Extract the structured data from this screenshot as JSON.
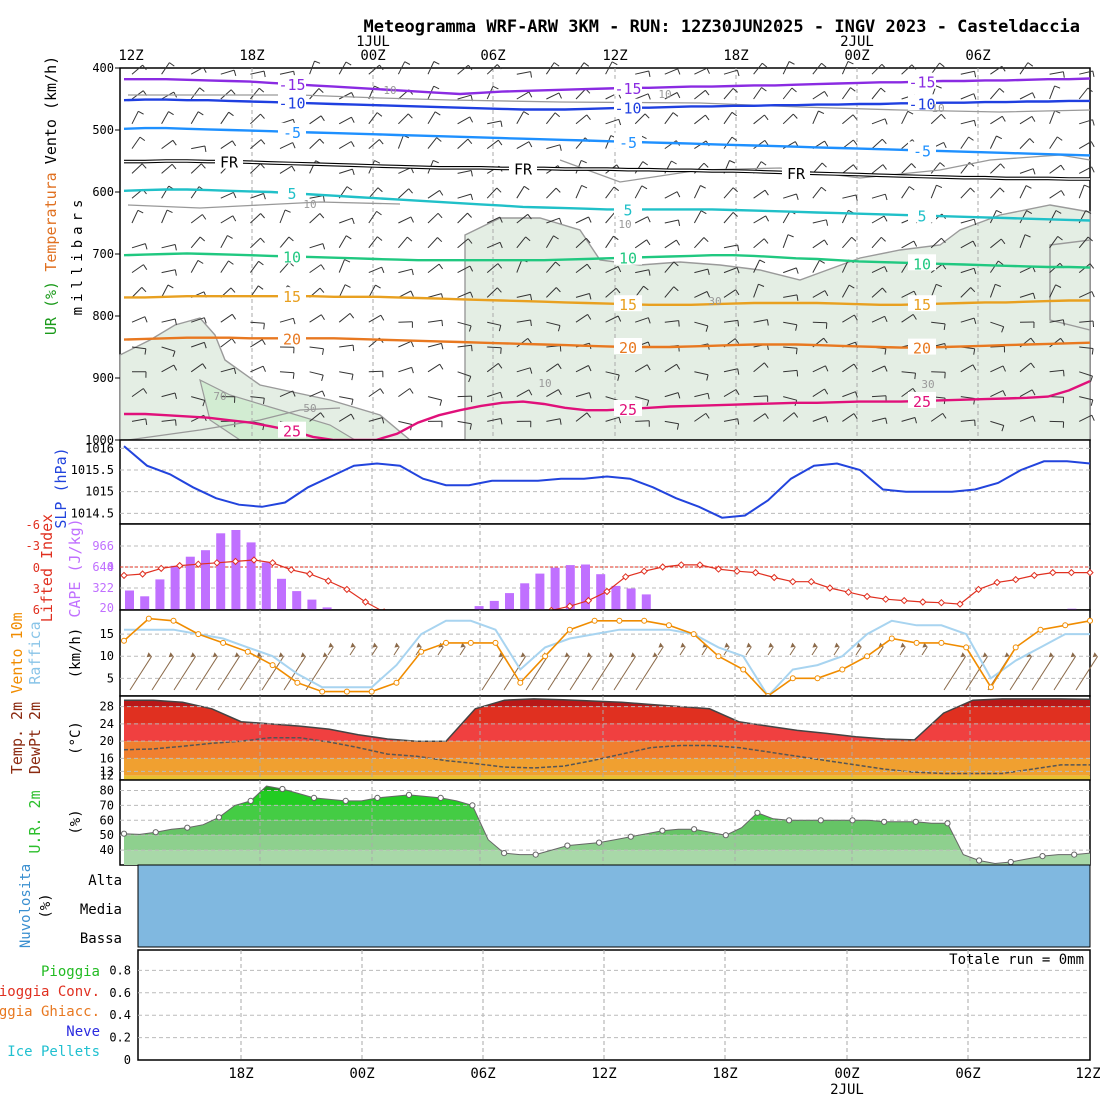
{
  "title": "Meteogramma WRF-ARW 3KM - RUN: 12Z30JUN2025 - INGV 2023 - Casteldaccia",
  "colors": {
    "purple": "#8a2be2",
    "blue": "#1f3fe0",
    "sky": "#1e90ff",
    "cyan": "#20c0c8",
    "green": "#20c880",
    "orange": "#e8a020",
    "darkorange": "#e87820",
    "magenta": "#e0107a",
    "gray": "#999999",
    "slp": "#2244dd",
    "cape": "#c070ff",
    "li": "#e03020",
    "wind10": "#f08c00",
    "gust": "#a8d4f0",
    "rh_dark": "#22cc22",
    "rh_light": "#a8d8a8",
    "cloud": "#80b8e0"
  },
  "top_axis": {
    "labels": [
      "12Z",
      "18Z",
      "00Z",
      "06Z",
      "12Z",
      "18Z",
      "00Z",
      "06Z"
    ],
    "date_labels": [
      "1JUL",
      "2JUL"
    ]
  },
  "bottom_axis": {
    "labels": [
      "18Z",
      "00Z",
      "06Z",
      "12Z",
      "18Z",
      "00Z",
      "06Z",
      "12Z"
    ],
    "date_label": "2JUL"
  },
  "panel_labels": {
    "upper": {
      "wind": "Vento (km/h)",
      "temp": "Temperatura",
      "rh": "UR (%)",
      "unit": "millibars"
    },
    "slp": "SLP (hPa)",
    "li": "Lifted Index",
    "cape": "CAPE (J/kg)",
    "wind10_a": "Vento 10m",
    "wind10_b": "Raffica",
    "wind_unit": "(km/h)",
    "temp_a": "Temp. 2m",
    "temp_b": "DewPt 2m",
    "temp_unit": "(°C)",
    "rh2": "U.R. 2m",
    "rh_unit": "(%)",
    "cloud": "Nuvolosita",
    "cloud_unit": "(%)",
    "cloud_levels": [
      "Alta",
      "Media",
      "Bassa"
    ],
    "precip": [
      "Pioggia",
      "Pioggia Conv.",
      "Pioggia Ghiacc.",
      "Neve",
      "Ice Pellets"
    ],
    "precip_total": "Totale run = 0mm"
  },
  "chart_data": [
    {
      "type": "line",
      "name": "upper-air",
      "ylim": [
        1000,
        400
      ],
      "y_ticks": [
        400,
        500,
        600,
        700,
        800,
        900,
        1000
      ],
      "contour_labels": [
        "-15",
        "-10",
        "-5",
        "FR",
        "5",
        "10",
        "15",
        "20",
        "25",
        "10",
        "30",
        "50",
        "70"
      ],
      "isotherms": [
        {
          "label": "-15",
          "color": "purple",
          "p": [
            418,
            418,
            418,
            419,
            420,
            421,
            422,
            424,
            426,
            428,
            430,
            432,
            434,
            436,
            438,
            440,
            442,
            440,
            438,
            437,
            436,
            435,
            434,
            433,
            432,
            432,
            431,
            430,
            430,
            429,
            428,
            428,
            427,
            426,
            425,
            424,
            423,
            423,
            422,
            421,
            421,
            420,
            420,
            419,
            418,
            418,
            417
          ]
        },
        {
          "label": "-10",
          "color": "blue",
          "p": [
            452,
            451,
            451,
            452,
            452,
            453,
            454,
            455,
            456,
            457,
            458,
            459,
            460,
            461,
            462,
            463,
            464,
            465,
            466,
            467,
            467,
            467,
            466,
            465,
            464,
            464,
            463,
            462,
            462,
            461,
            461,
            460,
            460,
            459,
            459,
            458,
            458,
            457,
            457,
            456,
            456,
            455,
            455,
            454,
            454,
            453,
            453
          ]
        },
        {
          "label": "-5",
          "color": "sky",
          "p": [
            498,
            497,
            497,
            498,
            499,
            500,
            501,
            502,
            503,
            504,
            505,
            506,
            507,
            508,
            509,
            510,
            511,
            512,
            513,
            514,
            515,
            516,
            517,
            518,
            519,
            520,
            521,
            522,
            523,
            524,
            525,
            526,
            527,
            528,
            529,
            530,
            531,
            532,
            533,
            534,
            535,
            536,
            537,
            538,
            539,
            540,
            541
          ]
        },
        {
          "label": "FR",
          "color": "black",
          "p": [
            551,
            551,
            550,
            550,
            551,
            551,
            552,
            553,
            554,
            555,
            556,
            557,
            558,
            559,
            560,
            561,
            561,
            561,
            562,
            562,
            562,
            563,
            563,
            563,
            564,
            564,
            565,
            565,
            566,
            566,
            567,
            568,
            569,
            570,
            571,
            572,
            573,
            574,
            575,
            576,
            577,
            577,
            578,
            578,
            578,
            579,
            579
          ]
        },
        {
          "label": "5",
          "color": "cyan",
          "p": [
            598,
            597,
            596,
            596,
            597,
            598,
            599,
            600,
            602,
            604,
            606,
            608,
            610,
            612,
            614,
            616,
            618,
            620,
            622,
            624,
            625,
            626,
            627,
            628,
            628,
            628,
            628,
            628,
            628,
            629,
            630,
            631,
            632,
            633,
            634,
            635,
            636,
            637,
            638,
            639,
            640,
            641,
            642,
            643,
            644,
            645,
            646
          ]
        },
        {
          "label": "10",
          "color": "green",
          "p": [
            702,
            701,
            700,
            699,
            700,
            701,
            702,
            703,
            704,
            705,
            706,
            707,
            708,
            709,
            710,
            710,
            710,
            710,
            710,
            710,
            710,
            709,
            708,
            707,
            706,
            705,
            704,
            703,
            702,
            702,
            703,
            705,
            707,
            708,
            710,
            712,
            713,
            714,
            715,
            716,
            717,
            718,
            719,
            720,
            721,
            721,
            722
          ]
        },
        {
          "label": "15",
          "color": "orange",
          "p": [
            770,
            770,
            769,
            768,
            768,
            768,
            768,
            768,
            768,
            768,
            769,
            769,
            769,
            770,
            771,
            772,
            773,
            774,
            775,
            776,
            777,
            778,
            779,
            780,
            781,
            782,
            782,
            782,
            781,
            780,
            779,
            779,
            779,
            779,
            780,
            781,
            782,
            782,
            781,
            780,
            779,
            778,
            778,
            777,
            776,
            775,
            775
          ]
        },
        {
          "label": "20",
          "color": "darkorange",
          "p": [
            838,
            837,
            836,
            835,
            835,
            835,
            836,
            836,
            836,
            836,
            836,
            837,
            838,
            839,
            840,
            841,
            842,
            843,
            844,
            845,
            846,
            847,
            848,
            849,
            850,
            850,
            850,
            849,
            848,
            847,
            846,
            846,
            846,
            847,
            848,
            849,
            850,
            851,
            851,
            850,
            849,
            848,
            847,
            846,
            845,
            844,
            843
          ]
        },
        {
          "label": "25",
          "color": "magenta",
          "p": [
            958,
            958,
            960,
            962,
            964,
            968,
            972,
            978,
            985,
            995,
            1002,
            1006,
            1004,
            990,
            972,
            960,
            952,
            945,
            940,
            938,
            942,
            948,
            952,
            952,
            950,
            948,
            946,
            945,
            944,
            943,
            942,
            941,
            940,
            940,
            939,
            938,
            938,
            938,
            937,
            936,
            935,
            934,
            933,
            932,
            930,
            920,
            905
          ]
        }
      ]
    },
    {
      "type": "line",
      "name": "SLP",
      "ylabel": "SLP (hPa)",
      "y_ticks": [
        "1016",
        "1015.5",
        "1015",
        "1014.5"
      ],
      "ylim": [
        1014.3,
        1016.1
      ],
      "values": [
        1016.05,
        1015.6,
        1015.4,
        1015.1,
        1014.85,
        1014.7,
        1014.65,
        1014.75,
        1015.1,
        1015.35,
        1015.6,
        1015.65,
        1015.6,
        1015.3,
        1015.15,
        1015.15,
        1015.25,
        1015.25,
        1015.25,
        1015.3,
        1015.3,
        1015.35,
        1015.3,
        1015.1,
        1014.85,
        1014.65,
        1014.4,
        1014.45,
        1014.8,
        1015.3,
        1015.6,
        1015.65,
        1015.5,
        1015.05,
        1015.0,
        1015.0,
        1015.0,
        1015.05,
        1015.2,
        1015.5,
        1015.7,
        1015.7,
        1015.65
      ]
    },
    {
      "type": "bar",
      "name": "CAPE / Lifted Index",
      "cape_ticks": [
        "966",
        "644",
        "322",
        "0",
        "20"
      ],
      "li_ticks": [
        "-6",
        "-3",
        "0",
        "3",
        "6"
      ],
      "cape": [
        300,
        210,
        470,
        680,
        820,
        920,
        1180,
        1230,
        1040,
        730,
        480,
        290,
        160,
        40,
        0,
        0,
        0,
        0,
        0,
        0,
        0,
        0,
        0,
        60,
        140,
        260,
        410,
        560,
        650,
        690,
        700,
        550,
        370,
        330,
        240,
        0,
        0,
        0,
        0,
        0,
        0,
        0,
        0,
        0,
        0,
        0,
        0,
        0,
        0,
        0,
        0,
        0,
        0,
        0,
        0,
        0,
        0,
        0,
        0,
        0,
        0,
        0,
        20
      ],
      "li": [
        1.2,
        1.0,
        0.2,
        -0.2,
        -0.4,
        -0.6,
        -0.8,
        -1.0,
        -0.6,
        0.4,
        1.0,
        2.0,
        3.2,
        5.0,
        6.8,
        8,
        8,
        8,
        8,
        8,
        8,
        8,
        8,
        6.2,
        5.6,
        4.8,
        3.5,
        1.4,
        0.6,
        0.0,
        -0.3,
        -0.3,
        0.3,
        0.6,
        0.8,
        1.5,
        2.1,
        2.1,
        3.0,
        3.6,
        4.2,
        4.6,
        4.8,
        5.0,
        5.1,
        5.3,
        3.2,
        2.2,
        1.8,
        1.2,
        0.8,
        0.8,
        0.8
      ]
    },
    {
      "type": "line",
      "name": "Wind 10m / Gust",
      "y_ticks": [
        "15",
        "10",
        "5"
      ],
      "ylim": [
        1,
        20
      ],
      "wind": [
        13.5,
        18.5,
        18,
        15,
        13,
        11,
        8,
        4,
        2,
        2,
        2,
        4,
        11,
        13,
        13,
        13,
        4,
        10,
        16,
        18,
        18,
        18,
        17,
        15,
        10,
        7,
        1,
        5,
        5,
        7,
        10,
        14,
        13,
        13,
        12,
        3,
        12,
        16,
        17,
        18
      ],
      "gust": [
        16,
        16,
        16,
        15,
        14,
        12,
        10,
        6,
        3,
        3,
        3,
        8,
        15,
        18,
        18,
        16,
        7,
        12,
        14,
        15,
        16,
        16,
        16,
        15,
        12,
        10,
        1,
        7,
        8,
        10,
        15,
        18,
        17,
        17,
        15,
        5,
        9,
        12,
        15,
        15
      ]
    },
    {
      "type": "area",
      "name": "Temp 2m / DewPt 2m",
      "y_ticks": [
        "28",
        "24",
        "20",
        "16",
        "13",
        "12"
      ],
      "ylim": [
        11,
        30
      ],
      "temp": [
        29.5,
        29.5,
        29.0,
        27.5,
        24.5,
        24.0,
        23.5,
        22.8,
        21.5,
        20.5,
        20.0,
        20.0,
        27.5,
        29.5,
        29.8,
        29.6,
        29.3,
        29.0,
        28.5,
        28.0,
        27.5,
        24.5,
        23.5,
        22.5,
        21.8,
        21.0,
        20.5,
        20.3,
        26.5,
        29.5,
        29.8,
        29.8,
        29.8,
        29.7
      ],
      "dewpt": [
        18.0,
        18.2,
        18.8,
        19.5,
        20.0,
        20.8,
        20.8,
        19.8,
        18.5,
        17.0,
        16.5,
        15.5,
        14.8,
        14.0,
        13.8,
        14.2,
        15.5,
        17.0,
        18.5,
        19.0,
        19.0,
        18.5,
        17.5,
        16.5,
        15.5,
        14.5,
        13.5,
        12.8,
        12.5,
        12.5,
        12.5,
        13.5,
        14.5,
        14.5
      ]
    },
    {
      "type": "area",
      "name": "U.R. 2m",
      "y_ticks": [
        "80",
        "70",
        "60",
        "50",
        "40"
      ],
      "ylim": [
        30,
        85
      ],
      "values": [
        51,
        50.5,
        52,
        54,
        55,
        57,
        62,
        70,
        73,
        83,
        81,
        78,
        75,
        74,
        73,
        73,
        75,
        76,
        77,
        76,
        75,
        73,
        70,
        47,
        38,
        37,
        37,
        40,
        43,
        44,
        45,
        47,
        49,
        51,
        53,
        54,
        54,
        52,
        50,
        55,
        65,
        61,
        60,
        60,
        60,
        60,
        60,
        60,
        59,
        59,
        59,
        58,
        58,
        37,
        33,
        31,
        32,
        34,
        36,
        37,
        37,
        38
      ]
    },
    {
      "type": "heatmap",
      "name": "Nuvolosita",
      "levels": [
        "Alta",
        "Media",
        "Bassa"
      ],
      "values": [
        [
          0
        ],
        [
          0
        ],
        [
          0
        ]
      ]
    },
    {
      "type": "bar",
      "name": "Precipitation",
      "y_ticks": [
        "0.8",
        "0.6",
        "0.4",
        "0.2",
        "0"
      ],
      "ylim": [
        0,
        1
      ],
      "series": [
        {
          "name": "Pioggia",
          "values": [
            0
          ]
        },
        {
          "name": "Pioggia Conv.",
          "values": [
            0
          ]
        },
        {
          "name": "Pioggia Ghiacc.",
          "values": [
            0
          ]
        },
        {
          "name": "Neve",
          "values": [
            0
          ]
        },
        {
          "name": "Ice Pellets",
          "values": [
            0
          ]
        }
      ]
    }
  ]
}
